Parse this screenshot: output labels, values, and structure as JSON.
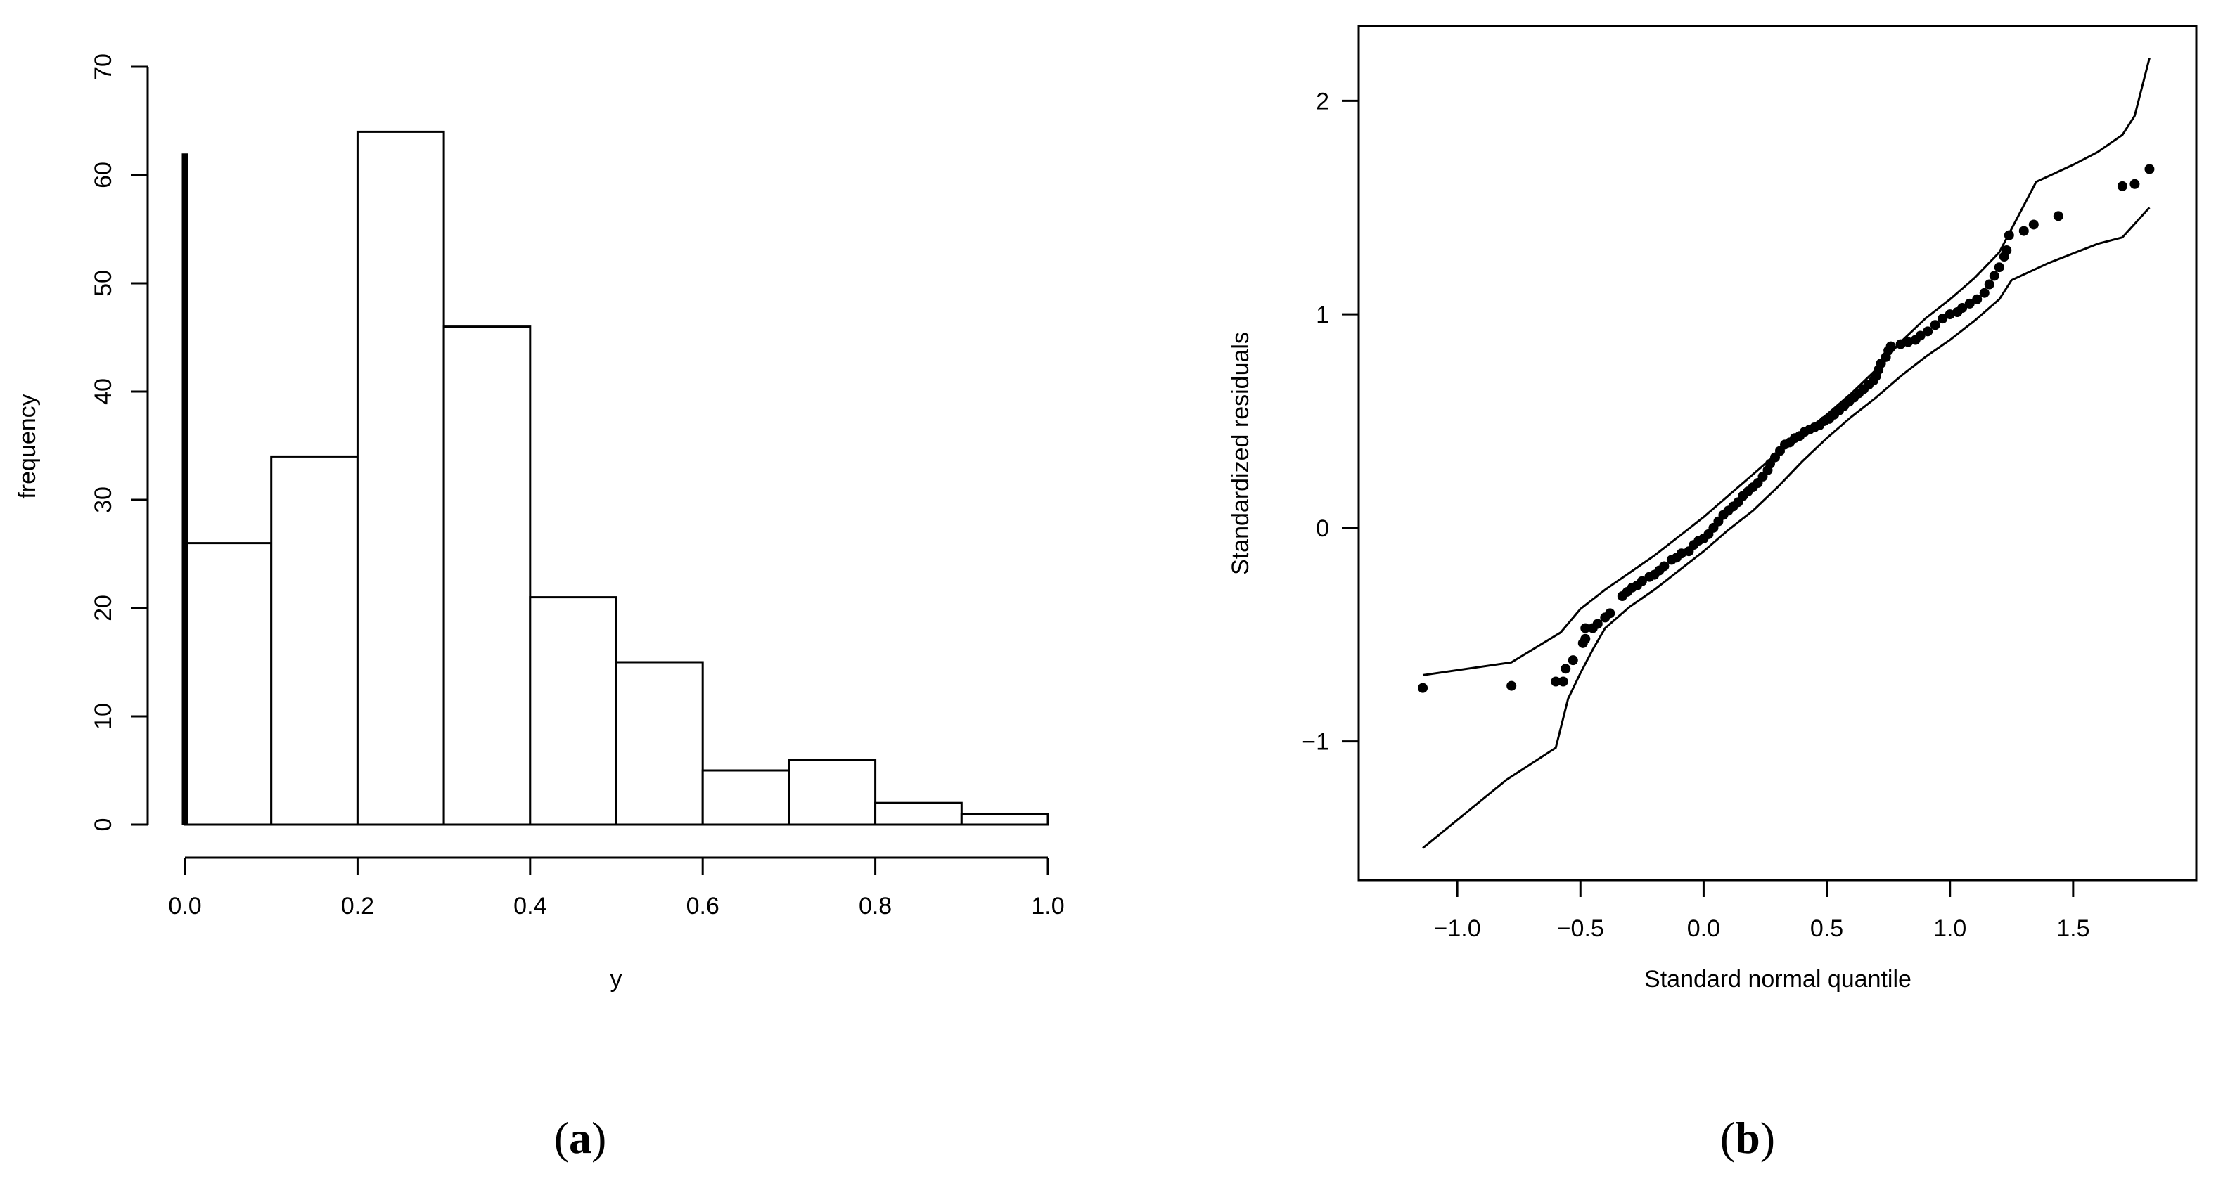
{
  "chart_data": [
    {
      "id": "a",
      "type": "bar",
      "subtype": "histogram",
      "panel_label": "a",
      "title": "",
      "xlabel": "y",
      "ylabel": "frequency",
      "bins": [
        {
          "from": 0.0,
          "to": 0.1,
          "value": 26
        },
        {
          "from": 0.1,
          "to": 0.2,
          "value": 34
        },
        {
          "from": 0.2,
          "to": 0.3,
          "value": 64
        },
        {
          "from": 0.3,
          "to": 0.4,
          "value": 46
        },
        {
          "from": 0.4,
          "to": 0.5,
          "value": 21
        },
        {
          "from": 0.5,
          "to": 0.6,
          "value": 15
        },
        {
          "from": 0.6,
          "to": 0.7,
          "value": 5
        },
        {
          "from": 0.7,
          "to": 0.8,
          "value": 6
        },
        {
          "from": 0.8,
          "to": 0.9,
          "value": 2
        },
        {
          "from": 0.9,
          "to": 1.0,
          "value": 1
        }
      ],
      "point_mass": {
        "x": 0.0,
        "value": 62
      },
      "xlim": [
        0.0,
        1.0
      ],
      "ylim": [
        0,
        70
      ],
      "x_ticks": [
        0.0,
        0.2,
        0.4,
        0.6,
        0.8,
        1.0
      ],
      "x_tick_labels": [
        "0.0",
        "0.2",
        "0.4",
        "0.6",
        "0.8",
        "1.0"
      ],
      "y_ticks": [
        0,
        10,
        20,
        30,
        40,
        50,
        60,
        70
      ],
      "y_tick_labels": [
        "0",
        "10",
        "20",
        "30",
        "40",
        "50",
        "60",
        "70"
      ]
    },
    {
      "id": "b",
      "type": "scatter",
      "subtype": "qq-plot with envelope",
      "panel_label": "b",
      "title": "",
      "xlabel": "Standard normal quantile",
      "ylabel": "Standardized residuals",
      "xlim": [
        -1.4,
        2.0
      ],
      "ylim": [
        -1.65,
        2.35
      ],
      "x_ticks": [
        -1.0,
        -0.5,
        0.0,
        0.5,
        1.0,
        1.5
      ],
      "x_tick_labels": [
        "−1.0",
        "−0.5",
        "0.0",
        "0.5",
        "1.0",
        "1.5"
      ],
      "y_ticks": [
        -1,
        0,
        1,
        2
      ],
      "y_tick_labels": [
        "−1",
        "0",
        "1",
        "2"
      ],
      "envelope_upper": [
        [
          -1.14,
          -0.69
        ],
        [
          -0.78,
          -0.63
        ],
        [
          -0.58,
          -0.49
        ],
        [
          -0.5,
          -0.38
        ],
        [
          -0.4,
          -0.29
        ],
        [
          -0.3,
          -0.21
        ],
        [
          -0.2,
          -0.13
        ],
        [
          -0.1,
          -0.04
        ],
        [
          0.0,
          0.05
        ],
        [
          0.1,
          0.15
        ],
        [
          0.2,
          0.25
        ],
        [
          0.3,
          0.35
        ],
        [
          0.4,
          0.44
        ],
        [
          0.5,
          0.53
        ],
        [
          0.6,
          0.63
        ],
        [
          0.7,
          0.74
        ],
        [
          0.8,
          0.87
        ],
        [
          0.9,
          0.98
        ],
        [
          1.0,
          1.07
        ],
        [
          1.1,
          1.17
        ],
        [
          1.2,
          1.29
        ],
        [
          1.25,
          1.4
        ],
        [
          1.35,
          1.62
        ],
        [
          1.5,
          1.7
        ],
        [
          1.6,
          1.76
        ],
        [
          1.7,
          1.84
        ],
        [
          1.75,
          1.93
        ],
        [
          1.81,
          2.2
        ]
      ],
      "envelope_lower": [
        [
          -1.14,
          -1.5
        ],
        [
          -0.8,
          -1.18
        ],
        [
          -0.6,
          -1.03
        ],
        [
          -0.55,
          -0.8
        ],
        [
          -0.5,
          -0.68
        ],
        [
          -0.45,
          -0.57
        ],
        [
          -0.4,
          -0.47
        ],
        [
          -0.3,
          -0.37
        ],
        [
          -0.2,
          -0.29
        ],
        [
          -0.1,
          -0.2
        ],
        [
          0.0,
          -0.11
        ],
        [
          0.1,
          -0.01
        ],
        [
          0.2,
          0.08
        ],
        [
          0.3,
          0.19
        ],
        [
          0.4,
          0.31
        ],
        [
          0.5,
          0.42
        ],
        [
          0.6,
          0.52
        ],
        [
          0.7,
          0.61
        ],
        [
          0.8,
          0.71
        ],
        [
          0.9,
          0.8
        ],
        [
          1.0,
          0.88
        ],
        [
          1.1,
          0.97
        ],
        [
          1.2,
          1.07
        ],
        [
          1.25,
          1.16
        ],
        [
          1.4,
          1.24
        ],
        [
          1.6,
          1.33
        ],
        [
          1.7,
          1.36
        ],
        [
          1.81,
          1.5
        ]
      ],
      "points": [
        [
          -1.14,
          -0.75
        ],
        [
          -0.78,
          -0.74
        ],
        [
          -0.6,
          -0.72
        ],
        [
          -0.57,
          -0.72
        ],
        [
          -0.56,
          -0.66
        ],
        [
          -0.53,
          -0.62
        ],
        [
          -0.49,
          -0.54
        ],
        [
          -0.48,
          -0.52
        ],
        [
          -0.48,
          -0.47
        ],
        [
          -0.45,
          -0.47
        ],
        [
          -0.43,
          -0.45
        ],
        [
          -0.4,
          -0.42
        ],
        [
          -0.38,
          -0.4
        ],
        [
          -0.33,
          -0.32
        ],
        [
          -0.31,
          -0.3
        ],
        [
          -0.29,
          -0.28
        ],
        [
          -0.27,
          -0.27
        ],
        [
          -0.25,
          -0.25
        ],
        [
          -0.22,
          -0.23
        ],
        [
          -0.2,
          -0.22
        ],
        [
          -0.18,
          -0.2
        ],
        [
          -0.16,
          -0.18
        ],
        [
          -0.13,
          -0.15
        ],
        [
          -0.11,
          -0.14
        ],
        [
          -0.09,
          -0.12
        ],
        [
          -0.06,
          -0.11
        ],
        [
          -0.04,
          -0.08
        ],
        [
          -0.02,
          -0.06
        ],
        [
          0.0,
          -0.05
        ],
        [
          0.02,
          -0.03
        ],
        [
          0.04,
          0.0
        ],
        [
          0.06,
          0.03
        ],
        [
          0.08,
          0.06
        ],
        [
          0.1,
          0.08
        ],
        [
          0.12,
          0.1
        ],
        [
          0.14,
          0.12
        ],
        [
          0.16,
          0.15
        ],
        [
          0.18,
          0.17
        ],
        [
          0.2,
          0.19
        ],
        [
          0.22,
          0.21
        ],
        [
          0.24,
          0.24
        ],
        [
          0.26,
          0.27
        ],
        [
          0.27,
          0.3
        ],
        [
          0.29,
          0.33
        ],
        [
          0.31,
          0.36
        ],
        [
          0.33,
          0.39
        ],
        [
          0.35,
          0.4
        ],
        [
          0.37,
          0.42
        ],
        [
          0.39,
          0.43
        ],
        [
          0.41,
          0.45
        ],
        [
          0.43,
          0.46
        ],
        [
          0.45,
          0.47
        ],
        [
          0.47,
          0.48
        ],
        [
          0.49,
          0.5
        ],
        [
          0.51,
          0.51
        ],
        [
          0.53,
          0.53
        ],
        [
          0.55,
          0.55
        ],
        [
          0.57,
          0.57
        ],
        [
          0.59,
          0.59
        ],
        [
          0.61,
          0.61
        ],
        [
          0.63,
          0.63
        ],
        [
          0.65,
          0.65
        ],
        [
          0.67,
          0.67
        ],
        [
          0.69,
          0.69
        ],
        [
          0.7,
          0.71
        ],
        [
          0.71,
          0.74
        ],
        [
          0.72,
          0.77
        ],
        [
          0.74,
          0.8
        ],
        [
          0.75,
          0.83
        ],
        [
          0.76,
          0.85
        ],
        [
          0.8,
          0.86
        ],
        [
          0.83,
          0.87
        ],
        [
          0.86,
          0.88
        ],
        [
          0.88,
          0.9
        ],
        [
          0.91,
          0.92
        ],
        [
          0.94,
          0.95
        ],
        [
          0.97,
          0.98
        ],
        [
          1.0,
          1.0
        ],
        [
          1.03,
          1.01
        ],
        [
          1.05,
          1.03
        ],
        [
          1.08,
          1.05
        ],
        [
          1.11,
          1.07
        ],
        [
          1.14,
          1.1
        ],
        [
          1.16,
          1.14
        ],
        [
          1.18,
          1.18
        ],
        [
          1.2,
          1.22
        ],
        [
          1.22,
          1.27
        ],
        [
          1.23,
          1.3
        ],
        [
          1.24,
          1.37
        ],
        [
          1.3,
          1.39
        ],
        [
          1.34,
          1.42
        ],
        [
          1.44,
          1.46
        ],
        [
          1.7,
          1.6
        ],
        [
          1.75,
          1.61
        ],
        [
          1.81,
          1.68
        ]
      ]
    }
  ]
}
